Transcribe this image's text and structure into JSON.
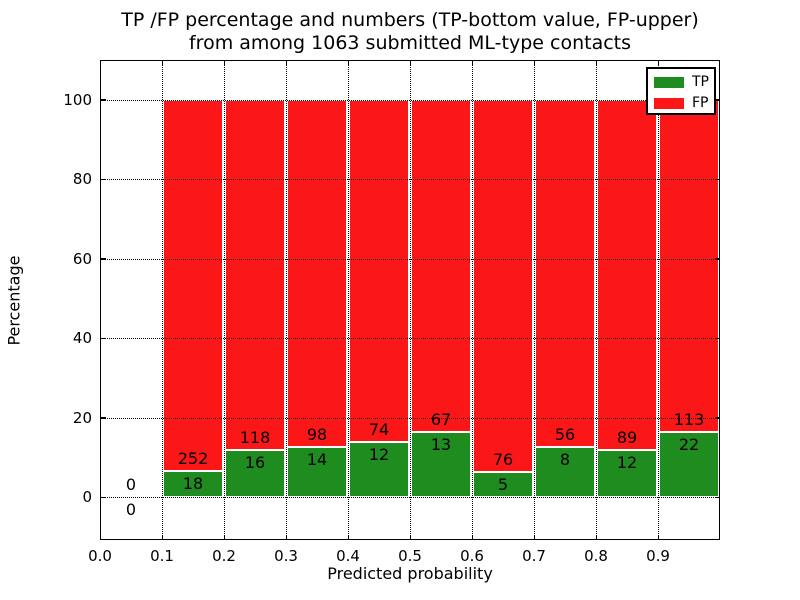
{
  "title": {
    "line1": "TP /FP percentage and numbers (TP-bottom value, FP-upper)",
    "line2": "from among 1063 submitted ML-type contacts"
  },
  "axes": {
    "xlabel": "Predicted probability",
    "ylabel": "Percentage",
    "x_tick_labels": [
      "0.0",
      "0.1",
      "0.2",
      "0.3",
      "0.4",
      "0.5",
      "0.6",
      "0.7",
      "0.8",
      "0.9"
    ],
    "y_tick_labels": [
      "0",
      "20",
      "40",
      "60",
      "80",
      "100"
    ]
  },
  "legend": {
    "position": "upper right",
    "items": [
      {
        "label": "TP",
        "color": "#1e8c1e"
      },
      {
        "label": "FP",
        "color": "#fb1717"
      }
    ]
  },
  "chart_data": {
    "type": "bar",
    "stacked": true,
    "normalized": "each bin scaled to 100% (percentage), count labels drawn on bars",
    "title": "TP /FP percentage and numbers (TP-bottom value, FP-upper) from among 1063 submitted ML-type contacts",
    "xlabel": "Predicted probability",
    "ylabel": "Percentage",
    "xlim": [
      0.0,
      1.0
    ],
    "ylim": [
      -11,
      110
    ],
    "grid": "dotted black, horizontal every 20%, vertical every 0.1, drawn over bars",
    "legend_position": "upper right",
    "categories": [
      "0.0-0.1",
      "0.1-0.2",
      "0.2-0.3",
      "0.3-0.4",
      "0.4-0.5",
      "0.5-0.6",
      "0.6-0.7",
      "0.7-0.8",
      "0.8-0.9",
      "0.9-1.0"
    ],
    "series": [
      {
        "name": "TP",
        "color": "#1e8c1e",
        "values": [
          0,
          18,
          16,
          14,
          12,
          13,
          5,
          8,
          12,
          22
        ]
      },
      {
        "name": "FP",
        "color": "#fb1717",
        "values": [
          0,
          252,
          118,
          98,
          74,
          67,
          76,
          56,
          89,
          113
        ]
      }
    ],
    "tp_percent_per_bin": [
      0,
      6.67,
      11.94,
      12.5,
      13.95,
      16.25,
      6.17,
      12.5,
      11.88,
      16.3
    ],
    "total_contacts_in_title": 1063
  }
}
